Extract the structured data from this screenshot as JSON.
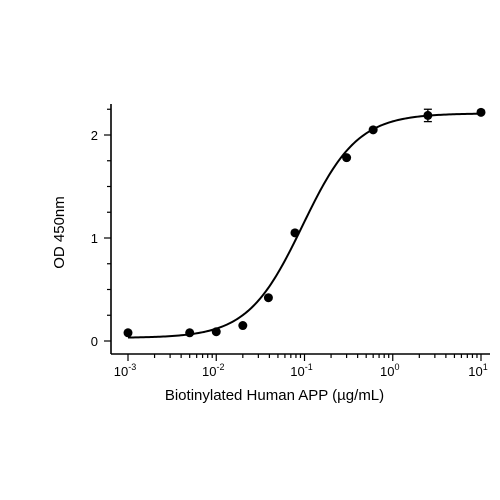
{
  "chart_data": {
    "type": "scatter",
    "xlabel": "Biotinylated Human APP (µg/mL)",
    "ylabel": "OD 450nm",
    "xscale": "log",
    "xlim": [
      0.001,
      10
    ],
    "ylim": [
      0,
      2.3
    ],
    "grid": false,
    "legend": "none",
    "x_ticks": [
      {
        "value": 0.001,
        "base": "10",
        "exp": "-3"
      },
      {
        "value": 0.01,
        "base": "10",
        "exp": "-2"
      },
      {
        "value": 0.1,
        "base": "10",
        "exp": "-1"
      },
      {
        "value": 1,
        "base": "10",
        "exp": "0"
      },
      {
        "value": 10,
        "base": "10",
        "exp": "1"
      }
    ],
    "y_ticks": [
      {
        "value": 0,
        "label": "0"
      },
      {
        "value": 1,
        "label": "1"
      },
      {
        "value": 2,
        "label": "2"
      }
    ],
    "series": [
      {
        "x": [
          0.001,
          0.005,
          0.01,
          0.02,
          0.039,
          0.078,
          0.3,
          0.6,
          2.5,
          10
        ],
        "y": [
          0.08,
          0.08,
          0.09,
          0.15,
          0.42,
          1.05,
          1.78,
          2.05,
          2.19,
          2.22
        ],
        "yerr": [
          0,
          0,
          0,
          0,
          0,
          0,
          0,
          0,
          0.06,
          0
        ]
      }
    ],
    "fit": {
      "model": "4PL",
      "bottom": 0.03,
      "top": 2.21,
      "ec50": 0.095,
      "hill": 1.4
    },
    "colors": {
      "marks": "#000000",
      "background": "#ffffff"
    }
  }
}
